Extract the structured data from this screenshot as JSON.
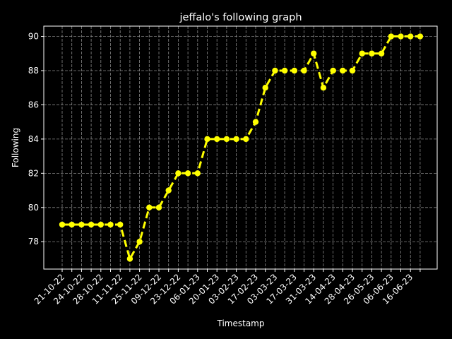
{
  "chart_data": {
    "type": "line",
    "title": "jeffalo's following graph",
    "xlabel": "Timestamp",
    "ylabel": "Following",
    "ylim": [
      76.4,
      90.6
    ],
    "yticks": [
      78,
      80,
      82,
      84,
      86,
      88,
      90
    ],
    "grid": true,
    "colors": {
      "background": "#000000",
      "axes": "#ffffff",
      "grid": "#888888",
      "line": "#ffff00"
    },
    "line_style": "dashed",
    "marker": "circle",
    "x_tick_labels": [
      "21-10-22",
      "24-10-22",
      "28-10-22",
      "11-11-22",
      "25-11-22",
      "09-12-22",
      "23-12-22",
      "06-01-23",
      "20-01-23",
      "03-02-23",
      "17-02-23",
      "03-03-23",
      "17-03-23",
      "31-03-23",
      "14-04-23",
      "28-04-23",
      "26-05-23",
      "06-06-23",
      "16-06-23"
    ],
    "values": [
      79,
      79,
      79,
      79,
      79,
      79,
      79,
      77,
      78,
      80,
      80,
      81,
      82,
      82,
      82,
      84,
      84,
      84,
      84,
      84,
      85,
      87,
      88,
      88,
      88,
      88,
      89,
      87,
      88,
      88,
      88,
      89,
      89,
      89,
      90,
      90,
      90,
      90
    ]
  }
}
